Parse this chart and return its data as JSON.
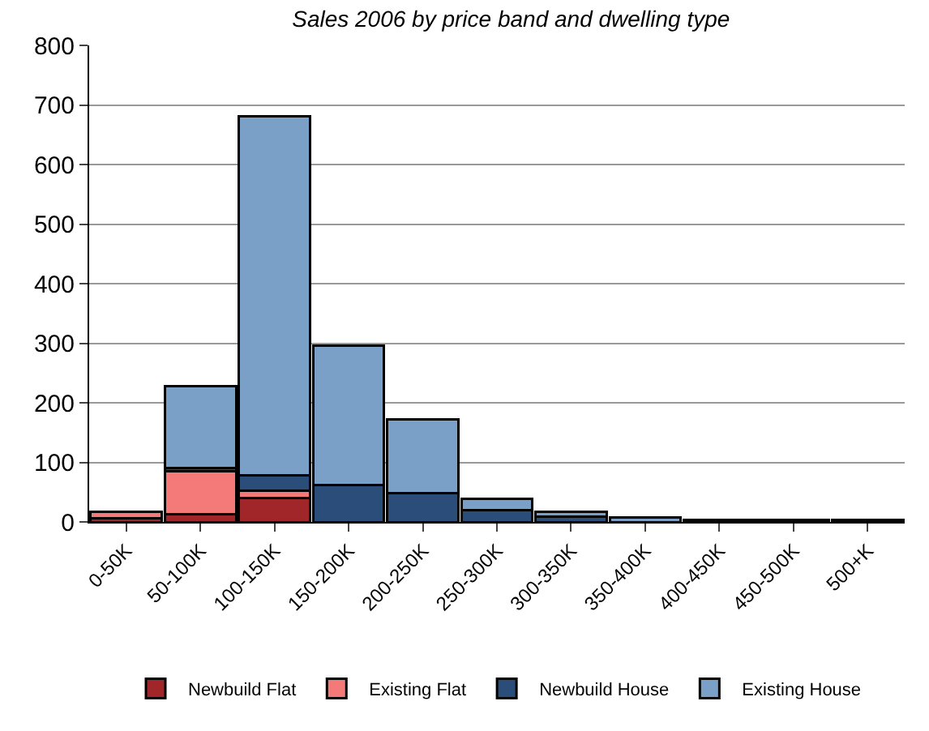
{
  "chart_data": {
    "type": "bar",
    "title": "Sales 2006 by price band and dwelling type",
    "stacked": true,
    "categories": [
      "0-50K",
      "50-100K",
      "100-150K",
      "150-200K",
      "200-250K",
      "250-300K",
      "300-350K",
      "350-400K",
      "400-450K",
      "450-500K",
      "500+K"
    ],
    "series": [
      {
        "name": "Newbuild Flat",
        "color": "#a0262a",
        "values": [
          6,
          13,
          40,
          null,
          null,
          null,
          null,
          null,
          null,
          null,
          null
        ]
      },
      {
        "name": "Existing Flat",
        "color": "#f47a7a",
        "values": [
          11,
          72,
          13,
          null,
          null,
          null,
          null,
          null,
          null,
          null,
          null
        ]
      },
      {
        "name": "Newbuild House",
        "color": "#2a4d7a",
        "values": [
          null,
          5,
          25,
          62,
          48,
          20,
          9,
          null,
          null,
          null,
          null
        ]
      },
      {
        "name": "Existing House",
        "color": "#7aa0c8",
        "values": [
          null,
          138,
          603,
          234,
          124,
          19,
          8,
          8,
          4,
          4,
          4
        ]
      }
    ],
    "ylim": [
      0,
      800
    ],
    "yticks": [
      0,
      100,
      200,
      300,
      400,
      500,
      600,
      700,
      800
    ],
    "grid": "y",
    "legend": "bottom"
  }
}
